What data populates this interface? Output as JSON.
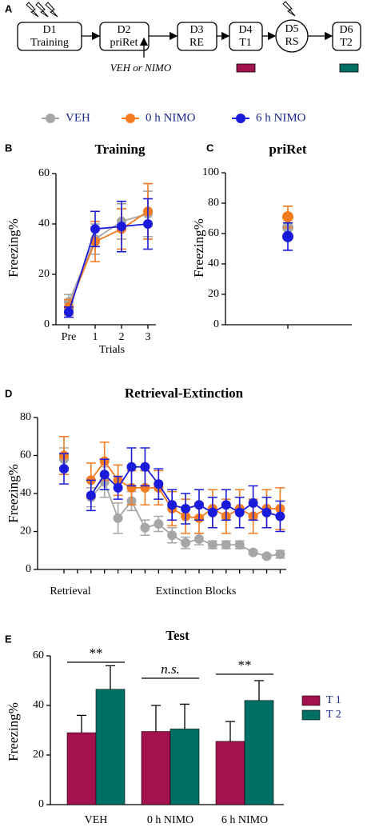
{
  "panel_labels": [
    "A",
    "B",
    "C",
    "D",
    "E"
  ],
  "diagram": {
    "nodes": [
      {
        "label": "D1",
        "sublabel": "Training"
      },
      {
        "label": "D2",
        "sublabel": "priRet"
      },
      {
        "label": "D3",
        "sublabel": "RE"
      },
      {
        "label": "D4",
        "sublabel": "T1"
      },
      {
        "label": "D5",
        "sublabel": "RS"
      },
      {
        "label": "D6",
        "sublabel": "T2"
      }
    ],
    "treatment": "VEH or NIMO"
  },
  "chart_data": [
    {
      "type": "line",
      "title": "Training",
      "xlabel": "Trials",
      "ylabel": "Freezing%",
      "categories": [
        "Pre",
        "1",
        "2",
        "3"
      ],
      "ylim": [
        0,
        60
      ],
      "yticks": [
        0,
        20,
        40,
        60
      ],
      "series": [
        {
          "name": "VEH",
          "color": "#a6a6a6",
          "values": [
            9,
            34,
            41,
            44
          ],
          "errors": [
            3,
            6,
            7,
            9
          ]
        },
        {
          "name": "0 h NIMO",
          "color": "#f47b20",
          "values": [
            7,
            33,
            38,
            45
          ],
          "errors": [
            3,
            8,
            8,
            11
          ]
        },
        {
          "name": "6 h NIMO",
          "color": "#1a1adb",
          "values": [
            5,
            38,
            39,
            40
          ],
          "errors": [
            2,
            7,
            10,
            10
          ]
        }
      ]
    },
    {
      "type": "line",
      "title": "priRet",
      "ylabel": "Freezing%",
      "categories": [
        null
      ],
      "ylim": [
        0,
        100
      ],
      "yticks": [
        0,
        20,
        40,
        60,
        80,
        100
      ],
      "series": [
        {
          "color": "#a6a6a6",
          "values": [
            64
          ],
          "errors": [
            6
          ]
        },
        {
          "color": "#f47b20",
          "values": [
            71
          ],
          "errors": [
            7
          ]
        },
        {
          "color": "#1a1adb",
          "values": [
            58
          ],
          "errors": [
            9
          ]
        }
      ]
    },
    {
      "type": "line",
      "title": "Retrieval-Extinction",
      "ylabel": "Freezing%",
      "x_group_labels": [
        "Retrieval",
        "Extinction Blocks"
      ],
      "categories": [
        null,
        null,
        null,
        null,
        null,
        null,
        null,
        null,
        null,
        null,
        null,
        null,
        null,
        null,
        null,
        null,
        null
      ],
      "ylim": [
        0,
        80
      ],
      "yticks": [
        0,
        20,
        40,
        60,
        80
      ],
      "series": [
        {
          "color": "#a6a6a6",
          "values": [
            58,
            null,
            38,
            46,
            27,
            36,
            22,
            24,
            18,
            14,
            16,
            13,
            13,
            13,
            9,
            7,
            8
          ],
          "errors": [
            6,
            null,
            5,
            8,
            8,
            5,
            4,
            4,
            4,
            3,
            3,
            2,
            2,
            2,
            1,
            1,
            2
          ]
        },
        {
          "color": "#f47b20",
          "values": [
            60,
            null,
            47,
            57,
            47,
            43,
            43,
            43,
            32,
            28,
            27,
            32,
            28,
            32,
            28,
            32,
            32
          ],
          "errors": [
            10,
            null,
            9,
            10,
            8,
            9,
            9,
            9,
            9,
            9,
            8,
            10,
            9,
            10,
            9,
            10,
            11
          ]
        },
        {
          "color": "#1a1adb",
          "values": [
            53,
            null,
            39,
            50,
            43,
            54,
            54,
            45,
            34,
            32,
            34,
            30,
            34,
            30,
            35,
            30,
            28
          ],
          "errors": [
            8,
            null,
            8,
            8,
            6,
            10,
            10,
            8,
            8,
            8,
            8,
            8,
            8,
            8,
            9,
            8,
            8
          ]
        }
      ]
    },
    {
      "type": "bar",
      "title": "Test",
      "ylabel": "Freezing%",
      "categories": [
        "VEH",
        "0 h NIMO",
        "6 h NIMO"
      ],
      "ylim": [
        0,
        60
      ],
      "yticks": [
        0,
        20,
        40,
        60
      ],
      "annotations": [
        "**",
        "n.s.",
        "**"
      ],
      "series": [
        {
          "name": "T 1",
          "color": "#a3124f",
          "values": [
            29,
            29.5,
            25.5
          ],
          "errors": [
            7,
            10.5,
            8
          ]
        },
        {
          "name": "T 2",
          "color": "#007065",
          "values": [
            46.5,
            30.5,
            42
          ],
          "errors": [
            9.5,
            10,
            8
          ]
        }
      ]
    }
  ]
}
